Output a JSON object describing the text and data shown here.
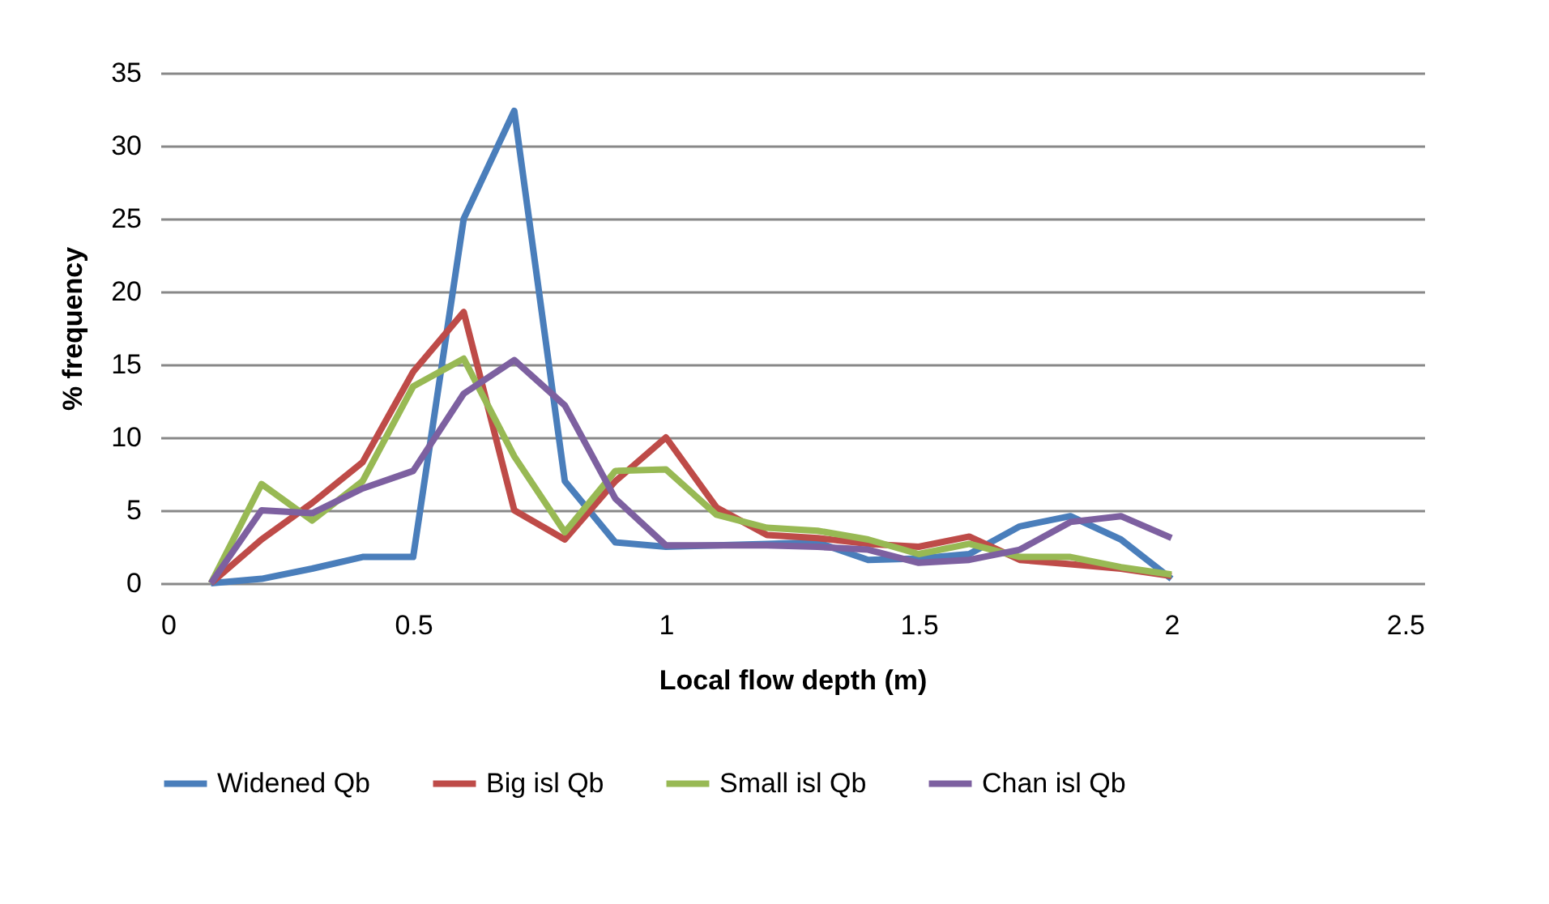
{
  "chart_data": {
    "type": "line",
    "xlabel": "Local flow depth (m)",
    "ylabel": "% frequency",
    "x": [
      0.1,
      0.2,
      0.3,
      0.4,
      0.5,
      0.6,
      0.7,
      0.8,
      0.9,
      1.0,
      1.1,
      1.2,
      1.3,
      1.4,
      1.5,
      1.6,
      1.7,
      1.8,
      1.9,
      2.0
    ],
    "series": [
      {
        "name": "Widened Qb",
        "color": "#4a7ebb",
        "values": [
          0,
          0.3,
          1,
          1.8,
          1.8,
          25,
          32.4,
          7,
          2.8,
          2.5,
          2.6,
          2.7,
          2.8,
          1.6,
          1.7,
          2.0,
          3.9,
          4.6,
          3.0,
          0.3
        ]
      },
      {
        "name": "Big isl Qb",
        "color": "#be4b48",
        "values": [
          0,
          3,
          5.5,
          8.3,
          14.5,
          18.6,
          5,
          3,
          7,
          10,
          5.2,
          3.3,
          3.1,
          2.7,
          2.5,
          3.2,
          1.6,
          1.3,
          1.0,
          0.5
        ]
      },
      {
        "name": "Small isl Qb",
        "color": "#98b954",
        "values": [
          0,
          6.8,
          4.3,
          7,
          13.5,
          15.4,
          8.7,
          3.5,
          7.7,
          7.8,
          4.7,
          3.8,
          3.6,
          3.0,
          2.0,
          2.7,
          1.8,
          1.8,
          1.1,
          0.6
        ]
      },
      {
        "name": "Chan isl Qb",
        "color": "#7d60a0",
        "values": [
          0,
          5,
          4.8,
          6.5,
          7.7,
          13,
          15.3,
          12.2,
          5.8,
          2.6,
          2.6,
          2.6,
          2.5,
          2.3,
          1.4,
          1.6,
          2.3,
          4.2,
          4.6,
          3.1
        ]
      }
    ],
    "xlim": [
      0,
      2.5
    ],
    "xticks": [
      0,
      0.5,
      1,
      1.5,
      2,
      2.5
    ],
    "ylim": [
      0,
      35
    ],
    "yticks": [
      0,
      5,
      10,
      15,
      20,
      25,
      30,
      35
    ],
    "grid": "y",
    "legend": "bottom",
    "marker": "none",
    "line_style": "solid"
  }
}
